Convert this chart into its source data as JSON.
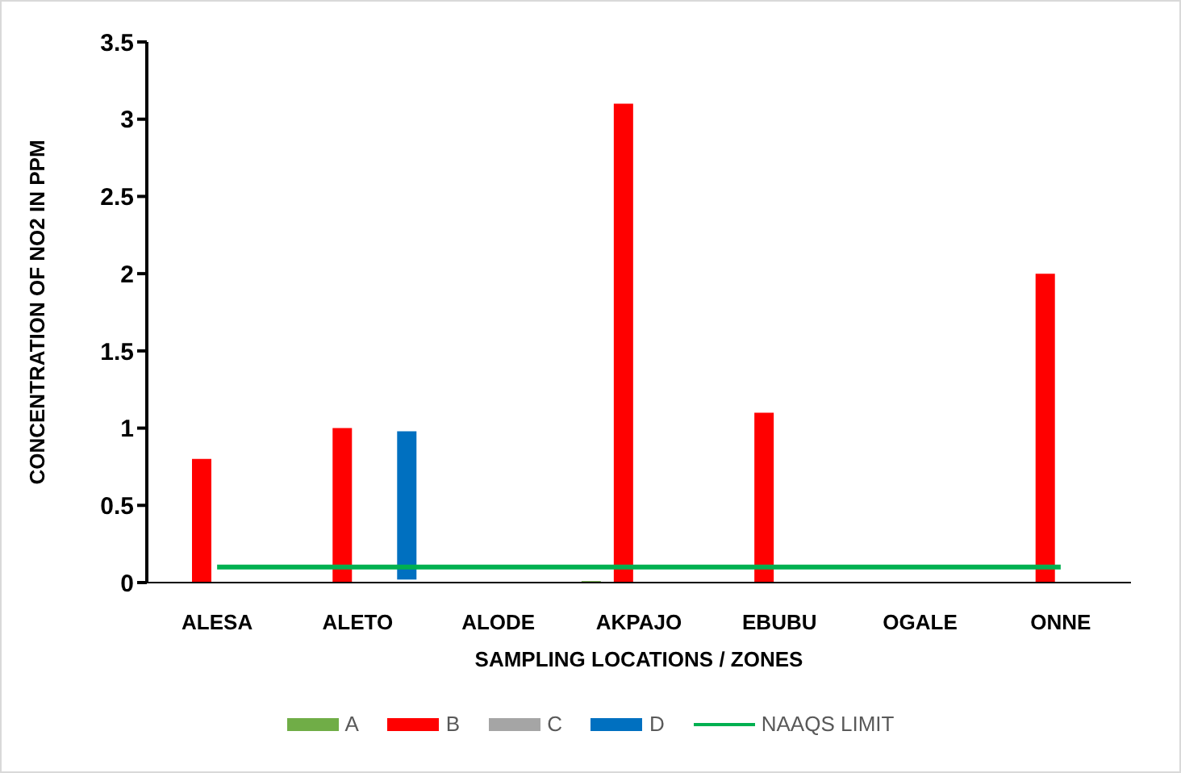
{
  "chart_data": {
    "type": "bar",
    "xlabel": "SAMPLING LOCATIONS / ZONES",
    "ylabel": "CONCENTRATION OF  NO2  IN PPM",
    "categories": [
      "ALESA",
      "ALETO",
      "ALODE",
      "AKPAJO",
      "EBUBU",
      "OGALE",
      "ONNE"
    ],
    "series": [
      {
        "name": "A",
        "color": "#70ad47",
        "values": [
          null,
          null,
          null,
          0.01,
          null,
          null,
          null
        ]
      },
      {
        "name": "B",
        "color": "#ff0000",
        "values": [
          0.8,
          1.0,
          null,
          3.1,
          1.1,
          null,
          2.0
        ]
      },
      {
        "name": "C",
        "color": "#a5a5a5",
        "values": [
          null,
          null,
          null,
          null,
          null,
          null,
          null
        ]
      },
      {
        "name": "D",
        "color": "#0070c0",
        "values": [
          null,
          0.96,
          null,
          null,
          null,
          null,
          null
        ],
        "base": [
          null,
          0.02,
          null,
          null,
          null,
          null,
          null
        ]
      },
      {
        "name": "NAAQS LIMIT",
        "type": "line",
        "color": "#00b050",
        "values": [
          0.1,
          0.1,
          0.1,
          0.1,
          0.1,
          0.1,
          0.1
        ]
      }
    ],
    "ylim": [
      0,
      3.5
    ],
    "yticks": [
      0,
      0.5,
      1,
      1.5,
      2,
      2.5,
      3,
      3.5
    ],
    "legend": "bottom",
    "marker": "none"
  }
}
